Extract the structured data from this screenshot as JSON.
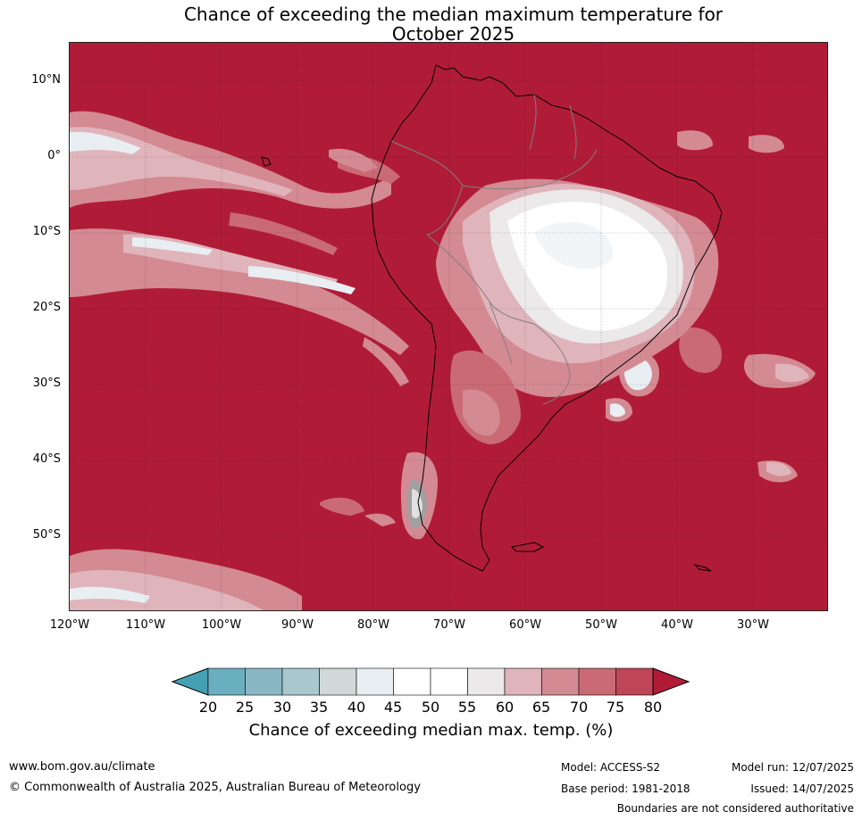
{
  "title_line1": "Chance of exceeding the median maximum temperature for",
  "title_line2": "October 2025",
  "map": {
    "latitude_labels": [
      "10°N",
      "0°",
      "10°S",
      "20°S",
      "30°S",
      "40°S",
      "50°S"
    ],
    "longitude_labels": [
      "120°W",
      "110°W",
      "100°W",
      "90°W",
      "80°W",
      "70°W",
      "60°W",
      "50°W",
      "40°W",
      "30°W"
    ],
    "colors": {
      "ocean_above_80": "#b01c37",
      "land_border": "#000000",
      "internal_border": "#808080"
    }
  },
  "legend": {
    "ticks": [
      "20",
      "25",
      "30",
      "35",
      "40",
      "45",
      "50",
      "55",
      "60",
      "65",
      "70",
      "75",
      "80"
    ],
    "colors": [
      "#45a0b3",
      "#6aafbf",
      "#8ab7c4",
      "#a8c8cd",
      "#d2d8d8",
      "#e8eef1",
      "#ffffff",
      "#ffffff",
      "#ebe9ea",
      "#e0b4bb",
      "#d48a93",
      "#c96a74",
      "#be4656",
      "#b01c37"
    ],
    "label": "Chance of exceeding median max. temp. (%)"
  },
  "footer": {
    "url": "www.bom.gov.au/climate",
    "copyright": "© Commonwealth of Australia 2025, Australian Bureau of Meteorology",
    "model": "Model: ACCESS-S2",
    "base_period": "Base period: 1981-2018",
    "model_run": "Model run: 12/07/2025",
    "issued": "Issued: 14/07/2025",
    "disclaimer": "Boundaries are not considered authoritative"
  }
}
